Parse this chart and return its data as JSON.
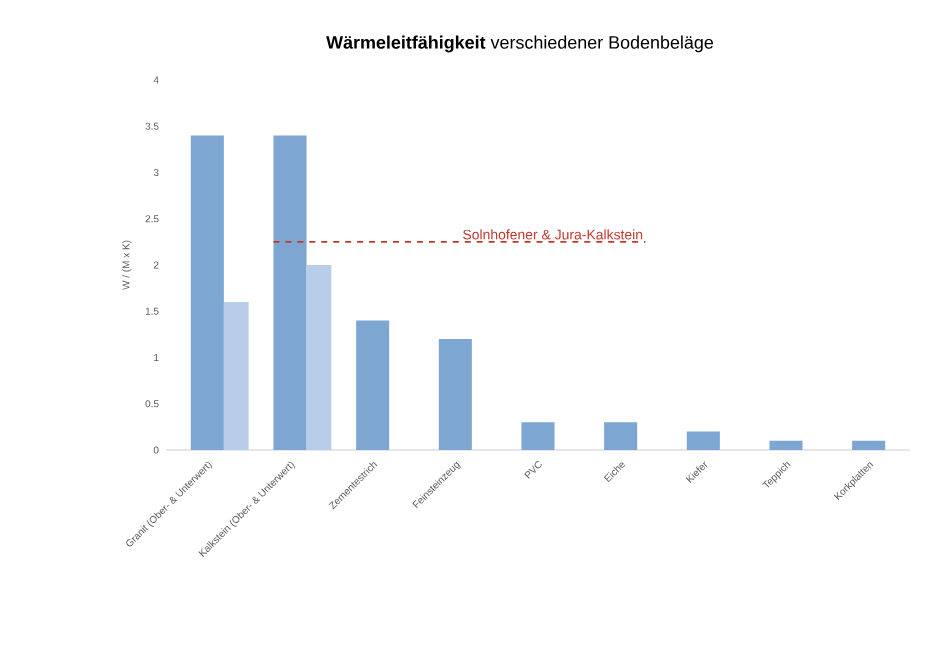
{
  "chart_data": {
    "type": "bar",
    "title": "**Wärmeleitfähigkeit** verschiedener Bodenbeläge",
    "ylabel": "W / (M x K)",
    "categories": [
      "Granit (Ober- & Unterwert)",
      "Kalkstein (Ober- & Unterwert)",
      "Zementestrich",
      "Feinsteinzeug",
      "PVC",
      "Eiche",
      "Kiefer",
      "Teppich",
      "Korkplatten"
    ],
    "series": [
      {
        "color": "#7ea6d2",
        "values": [
          3.4,
          3.4,
          1.4,
          1.2,
          0.3,
          0.3,
          0.2,
          0.1,
          0.1
        ]
      },
      {
        "color": "#b7cde8",
        "values": [
          1.6,
          2.0,
          null,
          null,
          null,
          null,
          null,
          null,
          null
        ]
      }
    ],
    "ylim": [
      0,
      4
    ],
    "yticks": [
      0,
      0.5,
      1,
      1.5,
      2,
      2.5,
      3,
      3.5,
      4
    ],
    "ref_lines": [
      {
        "axis": "y",
        "value": 2.25,
        "label": "Solnhofener & Jura-Kalkstein",
        "color": "#c0392b",
        "line_style": "dashed"
      }
    ],
    "grid": false
  }
}
